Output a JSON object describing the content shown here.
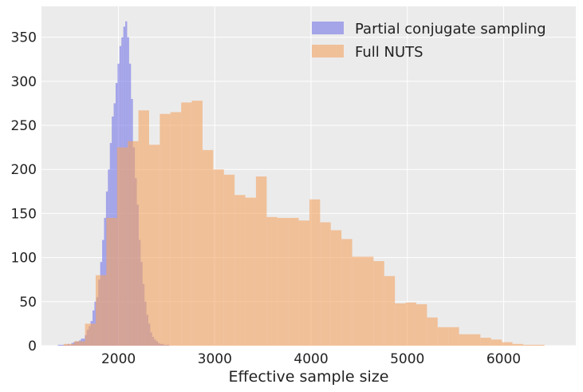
{
  "chart_data": {
    "type": "histogram",
    "title": "",
    "xlabel": "Effective sample size",
    "ylabel": "",
    "xlim": [
      1200,
      6750
    ],
    "ylim": [
      0,
      385
    ],
    "xticks": [
      2000,
      3000,
      4000,
      5000,
      6000
    ],
    "yticks": [
      0,
      50,
      100,
      150,
      200,
      250,
      300,
      350
    ],
    "grid": true,
    "legend_position": "top-right",
    "colors": {
      "background": "#ebebeb",
      "grid": "#ffffff"
    },
    "series": [
      {
        "name": "Partial conjugate sampling",
        "color": "#6a6ae8",
        "opacity": 0.55,
        "bin_start": 1370,
        "bin_width": 20,
        "counts": [
          1,
          1,
          1,
          1,
          1,
          2,
          1,
          3,
          4,
          5,
          5,
          6,
          8,
          8,
          12,
          18,
          22,
          28,
          40,
          50,
          55,
          75,
          95,
          120,
          145,
          175,
          200,
          230,
          260,
          275,
          298,
          320,
          340,
          350,
          362,
          368,
          350,
          320,
          280,
          225,
          190,
          160,
          120,
          95,
          70,
          50,
          35,
          25,
          15,
          10,
          7,
          5,
          3,
          2,
          2,
          1,
          1,
          1
        ]
      },
      {
        "name": "Full NUTS",
        "color": "#f3a463",
        "opacity": 0.6,
        "bin_start": 1430,
        "bin_width": 111,
        "counts": [
          2,
          5,
          25,
          80,
          145,
          225,
          232,
          267,
          228,
          263,
          265,
          276,
          278,
          222,
          200,
          194,
          171,
          168,
          192,
          146,
          145,
          145,
          142,
          166,
          140,
          131,
          121,
          101,
          101,
          96,
          79,
          48,
          49,
          47,
          32,
          21,
          21,
          13,
          13,
          9,
          7,
          4,
          2,
          1,
          1,
          0,
          0,
          0,
          0,
          2
        ]
      }
    ]
  }
}
